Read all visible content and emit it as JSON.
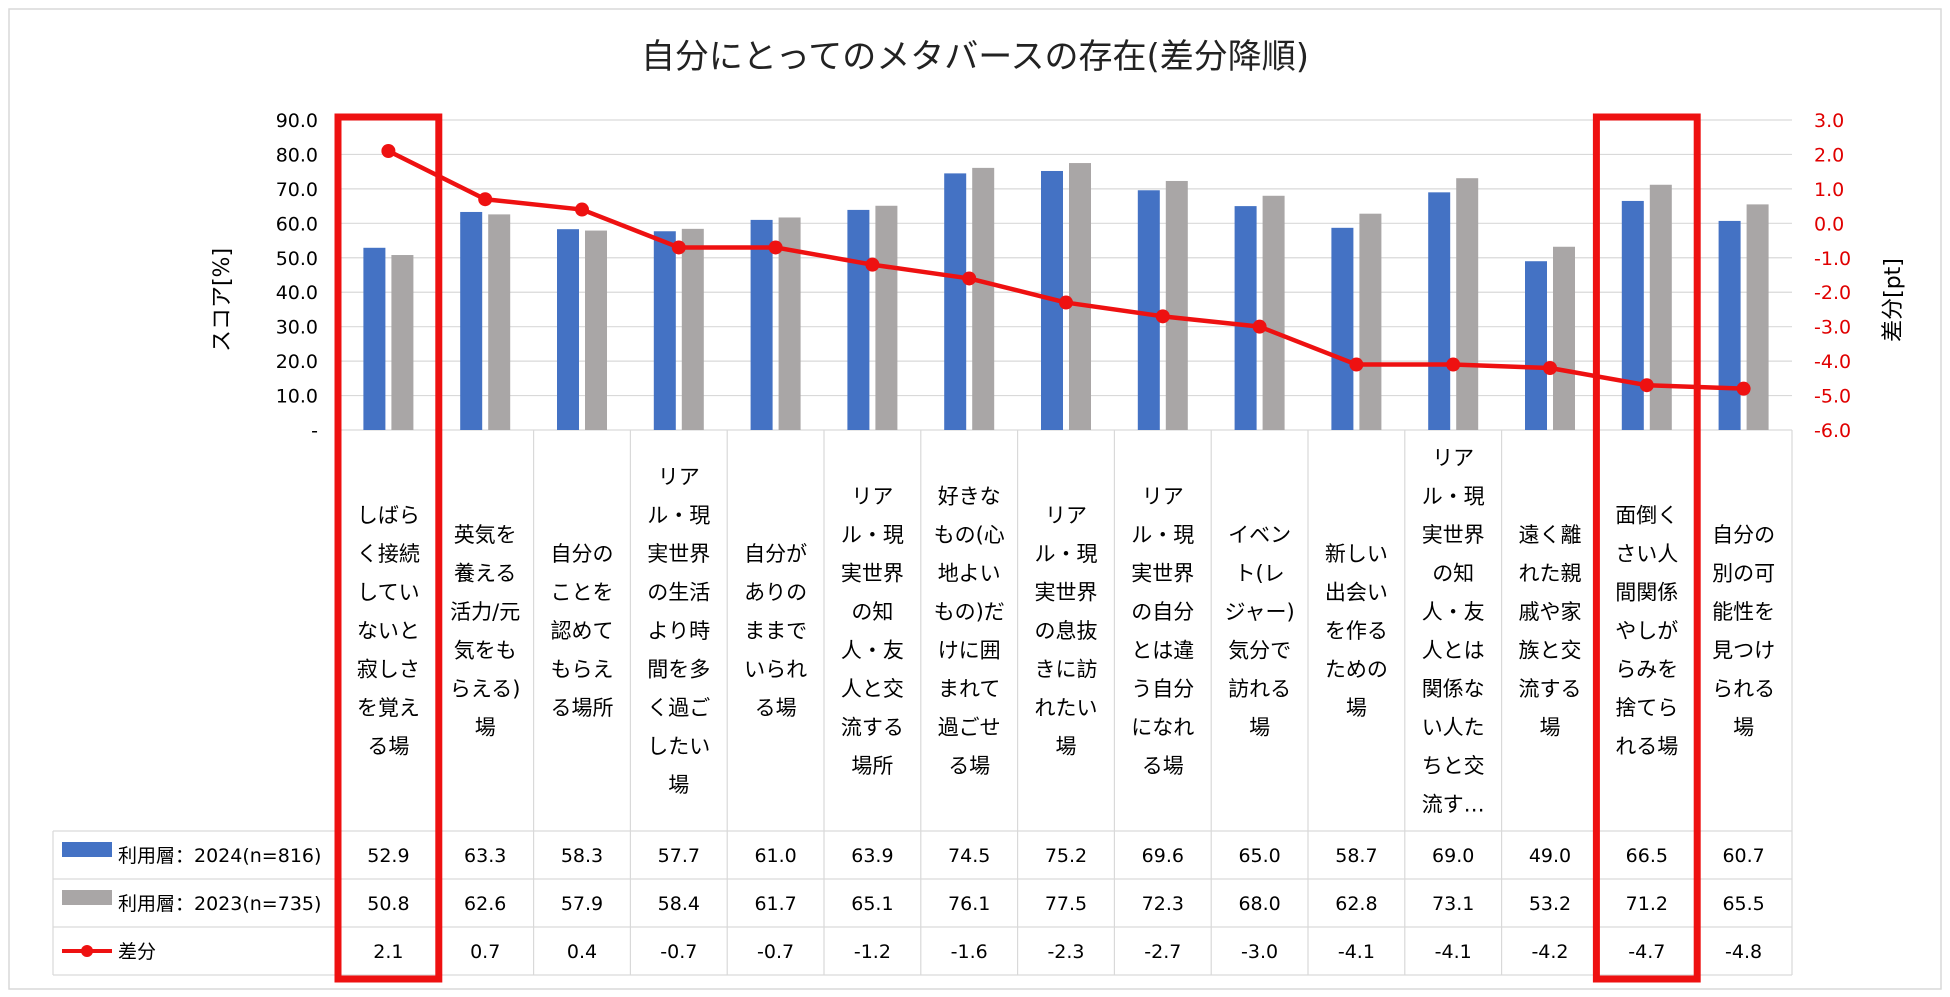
{
  "chart_data": {
    "type": "bar",
    "title": "自分にとってのメタバースの存在(差分降順)",
    "ylabel": "スコア[%]",
    "y2label": "差分[pt]",
    "ylim": [
      0,
      90
    ],
    "y2lim": [
      -6,
      3
    ],
    "y_ticks": [
      "-",
      "10.0",
      "20.0",
      "30.0",
      "40.0",
      "50.0",
      "60.0",
      "70.0",
      "80.0",
      "90.0"
    ],
    "y2_ticks": [
      "-6.0",
      "-5.0",
      "-4.0",
      "-3.0",
      "-2.0",
      "-1.0",
      "0.0",
      "1.0",
      "2.0",
      "3.0"
    ],
    "categories": [
      [
        "しばら",
        "く接続",
        "してい",
        "ないと",
        "寂しさ",
        "を覚え",
        "る場"
      ],
      [
        "英気を",
        "養える",
        "活力/元",
        "気をも",
        "らえる)",
        "場"
      ],
      [
        "自分の",
        "ことを",
        "認めて",
        "もらえ",
        "る場所"
      ],
      [
        "リア",
        "ル・現",
        "実世界",
        "の生活",
        "より時",
        "間を多",
        "く過ご",
        "したい",
        "場"
      ],
      [
        "自分が",
        "ありの",
        "ままで",
        "いられ",
        "る場"
      ],
      [
        "リア",
        "ル・現",
        "実世界",
        "の知",
        "人・友",
        "人と交",
        "流する",
        "場所"
      ],
      [
        "好きな",
        "もの(心",
        "地よい",
        "もの)だ",
        "けに囲",
        "まれて",
        "過ごせ",
        "る場"
      ],
      [
        "リア",
        "ル・現",
        "実世界",
        "の息抜",
        "きに訪",
        "れたい",
        "場"
      ],
      [
        "リア",
        "ル・現",
        "実世界",
        "の自分",
        "とは違",
        "う自分",
        "になれ",
        "る場"
      ],
      [
        "イベン",
        "ト(レ",
        "ジャー)",
        "気分で",
        "訪れる",
        "場"
      ],
      [
        "新しい",
        "出会い",
        "を作る",
        "ための",
        "場"
      ],
      [
        "リア",
        "ル・現",
        "実世界",
        "の知",
        "人・友",
        "人とは",
        "関係な",
        "い人た",
        "ちと交",
        "流す…"
      ],
      [
        "遠く離",
        "れた親",
        "戚や家",
        "族と交",
        "流する",
        "場"
      ],
      [
        "面倒く",
        "さい人",
        "間関係",
        "やしが",
        "らみを",
        "捨てら",
        "れる場"
      ],
      [
        "自分の",
        "別の可",
        "能性を",
        "見つけ",
        "られる",
        "場"
      ]
    ],
    "series": [
      {
        "name": "利用層：2024(n=816)",
        "type": "bar",
        "color": "#4472c4",
        "values": [
          52.9,
          63.3,
          58.3,
          57.7,
          61.0,
          63.9,
          74.5,
          75.2,
          69.6,
          65.0,
          58.7,
          69.0,
          49.0,
          66.5,
          60.7
        ],
        "labels": [
          "52.9",
          "63.3",
          "58.3",
          "57.7",
          "61.0",
          "63.9",
          "74.5",
          "75.2",
          "69.6",
          "65.0",
          "58.7",
          "69.0",
          "49.0",
          "66.5",
          "60.7"
        ]
      },
      {
        "name": "利用層：2023(n=735)",
        "type": "bar",
        "color": "#a9a6a6",
        "values": [
          50.8,
          62.6,
          57.9,
          58.4,
          61.7,
          65.1,
          76.1,
          77.5,
          72.3,
          68.0,
          62.8,
          73.1,
          53.2,
          71.2,
          65.5
        ],
        "labels": [
          "50.8",
          "62.6",
          "57.9",
          "58.4",
          "61.7",
          "65.1",
          "76.1",
          "77.5",
          "72.3",
          "68.0",
          "62.8",
          "73.1",
          "53.2",
          "71.2",
          "65.5"
        ]
      },
      {
        "name": "差分",
        "type": "line",
        "axis": "right",
        "color": "#ee1111",
        "values": [
          2.1,
          0.7,
          0.4,
          -0.7,
          -0.7,
          -1.2,
          -1.6,
          -2.3,
          -2.7,
          -3.0,
          -4.1,
          -4.1,
          -4.2,
          -4.7,
          -4.8
        ],
        "labels": [
          "2.1",
          "0.7",
          "0.4",
          "-0.7",
          "-0.7",
          "-1.2",
          "-1.6",
          "-2.3",
          "-2.7",
          "-3.0",
          "-4.1",
          "-4.1",
          "-4.2",
          "-4.7",
          "-4.8"
        ]
      }
    ],
    "highlighted_categories": [
      0,
      13
    ],
    "highlight_color": "#ee1111",
    "grid": true
  }
}
